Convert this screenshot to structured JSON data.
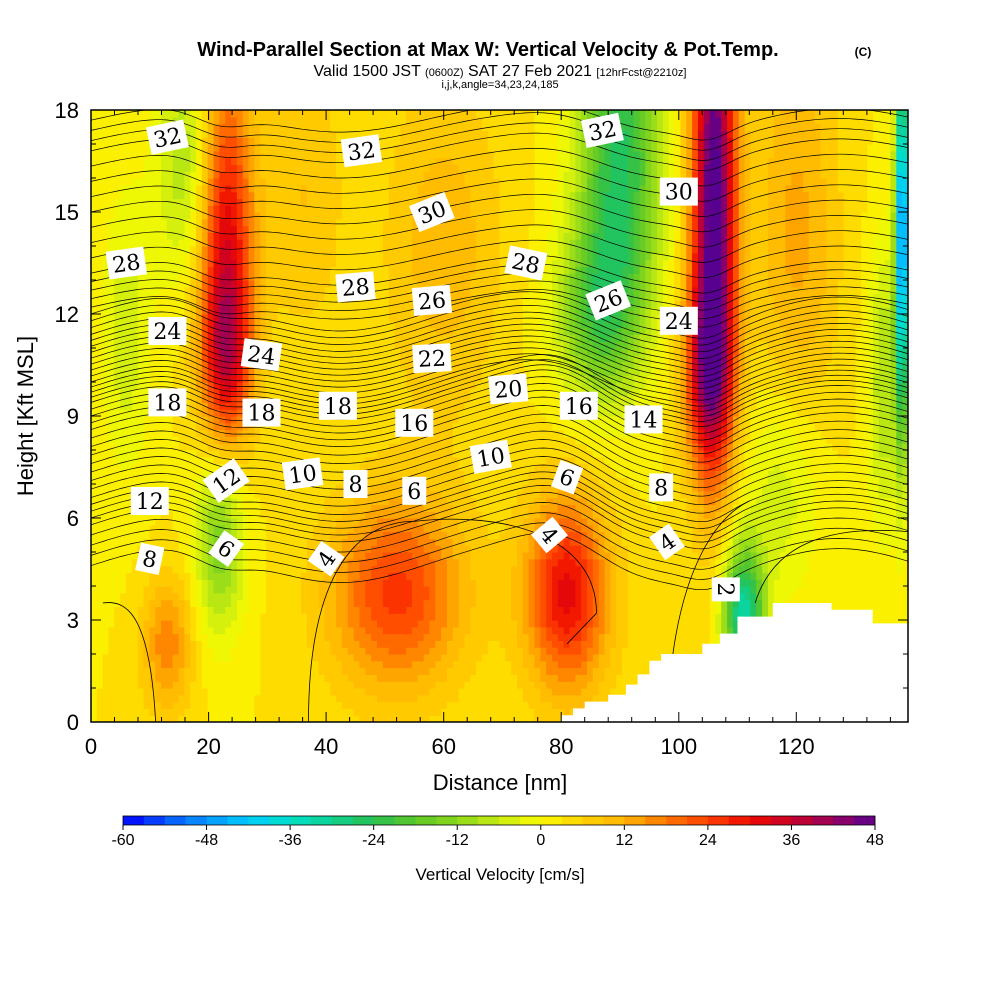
{
  "header": {
    "title": "Wind-Parallel Section at Max W: Vertical Velocity & Pot.Temp.",
    "copyright": "(C)",
    "valid_prefix": "Valid 1500 JST",
    "utc": "(0600Z)",
    "valid_date": "SAT 27 Feb 2021",
    "forecast": "[12hrFcst@2210z]",
    "section_info": "i,j,k,angle=34,23,24,185"
  },
  "chart_data": {
    "type": "heatmap",
    "xlabel": "Distance [nm]",
    "ylabel": "Height [Kft MSL]",
    "xlim": [
      0,
      139
    ],
    "ylim": [
      0,
      18
    ],
    "x_ticks": [
      "0",
      "20",
      "40",
      "60",
      "80",
      "100",
      "120"
    ],
    "x_tick_values": [
      0,
      20,
      40,
      60,
      80,
      100,
      120
    ],
    "y_ticks": [
      "0",
      "3",
      "6",
      "9",
      "12",
      "15",
      "18"
    ],
    "y_tick_values": [
      0,
      3,
      6,
      9,
      12,
      15,
      18
    ],
    "colorbar": {
      "label": "Vertical Velocity [cm/s]",
      "tick_labels": [
        "-60",
        "-48",
        "-36",
        "-24",
        "-12",
        "0",
        "12",
        "24",
        "36",
        "48"
      ],
      "tick_values": [
        -60,
        -48,
        -36,
        -24,
        -12,
        0,
        12,
        24,
        36,
        48
      ],
      "min": -60,
      "max": 48,
      "step": 3,
      "color_stops": [
        {
          "v": -60,
          "c": "#0000ff"
        },
        {
          "v": -51,
          "c": "#0a78ff"
        },
        {
          "v": -42,
          "c": "#00ccff"
        },
        {
          "v": -36,
          "c": "#00e0c8"
        },
        {
          "v": -30,
          "c": "#10d090"
        },
        {
          "v": -24,
          "c": "#28c050"
        },
        {
          "v": -18,
          "c": "#5cc828"
        },
        {
          "v": -12,
          "c": "#8cd81c"
        },
        {
          "v": -6,
          "c": "#c8ec10"
        },
        {
          "v": 0,
          "c": "#fafa00"
        },
        {
          "v": 6,
          "c": "#ffd200"
        },
        {
          "v": 12,
          "c": "#ffb400"
        },
        {
          "v": 18,
          "c": "#ff7800"
        },
        {
          "v": 24,
          "c": "#ff4000"
        },
        {
          "v": 30,
          "c": "#ee0a00"
        },
        {
          "v": 36,
          "c": "#c80028"
        },
        {
          "v": 42,
          "c": "#960060"
        },
        {
          "v": 48,
          "c": "#580090"
        }
      ]
    },
    "vertical_velocity_features": [
      {
        "x": 23,
        "y": 13.5,
        "sx": 3.2,
        "sy": 4.0,
        "w": 30
      },
      {
        "x": 23,
        "y": 10.8,
        "sx": 3.0,
        "sy": 1.6,
        "w": 14
      },
      {
        "x": 106,
        "y": 15.5,
        "sx": 2.6,
        "sy": 5.0,
        "w": 48
      },
      {
        "x": 105,
        "y": 10.3,
        "sx": 3.0,
        "sy": 2.0,
        "w": 24
      },
      {
        "x": 52,
        "y": 3.8,
        "sx": 8.0,
        "sy": 2.0,
        "w": 22
      },
      {
        "x": 81,
        "y": 3.8,
        "sx": 5.0,
        "sy": 2.0,
        "w": 28
      },
      {
        "x": 13,
        "y": 2.3,
        "sx": 3.0,
        "sy": 1.4,
        "w": 14
      },
      {
        "x": 90,
        "y": 16.5,
        "sx": 5.0,
        "sy": 3.5,
        "w": -28
      },
      {
        "x": 86,
        "y": 12.0,
        "sx": 5.0,
        "sy": 1.8,
        "w": -18
      },
      {
        "x": 22,
        "y": 5.5,
        "sx": 3.0,
        "sy": 2.0,
        "w": -20
      },
      {
        "x": 16,
        "y": 16.5,
        "sx": 3.5,
        "sy": 2.5,
        "w": -12
      },
      {
        "x": 111,
        "y": 3.2,
        "sx": 2.5,
        "sy": 1.4,
        "w": -35
      },
      {
        "x": 138,
        "y": 14.5,
        "sx": 0.8,
        "sy": 4.0,
        "w": -55
      },
      {
        "x": 135,
        "y": 10.0,
        "sx": 2.0,
        "sy": 3.0,
        "w": -12
      },
      {
        "x": 60,
        "y": 14.0,
        "sx": 7.0,
        "sy": 3.5,
        "w": 8
      },
      {
        "x": 6,
        "y": 11.5,
        "sx": 3.0,
        "sy": 3.0,
        "w": -8
      },
      {
        "x": 118,
        "y": 7.0,
        "sx": 5.0,
        "sy": 2.5,
        "w": -10
      },
      {
        "x": 36,
        "y": 15.5,
        "sx": 5.0,
        "sy": 3.0,
        "w": 6
      },
      {
        "x": 120,
        "y": 14.0,
        "sx": 5.0,
        "sy": 5.0,
        "w": 10
      }
    ],
    "terrain_profile": [
      {
        "x": 80,
        "top": 0.2
      },
      {
        "x": 82,
        "top": 0.4
      },
      {
        "x": 84,
        "top": 0.6
      },
      {
        "x": 88,
        "top": 0.8
      },
      {
        "x": 91,
        "top": 1.1
      },
      {
        "x": 93,
        "top": 1.4
      },
      {
        "x": 95,
        "top": 1.8
      },
      {
        "x": 97,
        "top": 2.0
      },
      {
        "x": 104,
        "top": 2.3
      },
      {
        "x": 107,
        "top": 2.6
      },
      {
        "x": 110,
        "top": 3.1
      },
      {
        "x": 116,
        "top": 3.5
      },
      {
        "x": 126,
        "top": 3.3
      },
      {
        "x": 133,
        "top": 2.9
      }
    ],
    "potential_temperature_contour_labels": [
      {
        "text": "32",
        "x": 13,
        "y": 17.2,
        "angle": -12
      },
      {
        "text": "32",
        "x": 46,
        "y": 16.8,
        "angle": -8
      },
      {
        "text": "32",
        "x": 87,
        "y": 17.4,
        "angle": -12
      },
      {
        "text": "30",
        "x": 58,
        "y": 15.0,
        "angle": -22
      },
      {
        "text": "30",
        "x": 100,
        "y": 15.6,
        "angle": 0
      },
      {
        "text": "28",
        "x": 6,
        "y": 13.5,
        "angle": -8
      },
      {
        "text": "28",
        "x": 45,
        "y": 12.8,
        "angle": -5
      },
      {
        "text": "28",
        "x": 74,
        "y": 13.5,
        "angle": 12
      },
      {
        "text": "26",
        "x": 58,
        "y": 12.4,
        "angle": -5
      },
      {
        "text": "26",
        "x": 88,
        "y": 12.4,
        "angle": -22
      },
      {
        "text": "24",
        "x": 13,
        "y": 11.5,
        "angle": 0
      },
      {
        "text": "24",
        "x": 29,
        "y": 10.8,
        "angle": 8
      },
      {
        "text": "24",
        "x": 100,
        "y": 11.8,
        "angle": 0
      },
      {
        "text": "22",
        "x": 58,
        "y": 10.7,
        "angle": -3
      },
      {
        "text": "20",
        "x": 71,
        "y": 9.8,
        "angle": -5
      },
      {
        "text": "18",
        "x": 13,
        "y": 9.4,
        "angle": 0
      },
      {
        "text": "18",
        "x": 29,
        "y": 9.1,
        "angle": 0
      },
      {
        "text": "18",
        "x": 42,
        "y": 9.3,
        "angle": 0
      },
      {
        "text": "16",
        "x": 55,
        "y": 8.8,
        "angle": 0
      },
      {
        "text": "16",
        "x": 83,
        "y": 9.3,
        "angle": 0
      },
      {
        "text": "14",
        "x": 94,
        "y": 8.9,
        "angle": 0
      },
      {
        "text": "12",
        "x": 10,
        "y": 6.5,
        "angle": 0
      },
      {
        "text": "12",
        "x": 23,
        "y": 7.1,
        "angle": -35
      },
      {
        "text": "10",
        "x": 36,
        "y": 7.3,
        "angle": -8
      },
      {
        "text": "10",
        "x": 68,
        "y": 7.8,
        "angle": -10
      },
      {
        "text": "8",
        "x": 10,
        "y": 4.8,
        "angle": 12
      },
      {
        "text": "8",
        "x": 45,
        "y": 7.0,
        "angle": 0
      },
      {
        "text": "8",
        "x": 97,
        "y": 6.9,
        "angle": 0
      },
      {
        "text": "6",
        "x": 23,
        "y": 5.1,
        "angle": 35
      },
      {
        "text": "6",
        "x": 55,
        "y": 6.8,
        "angle": 0
      },
      {
        "text": "6",
        "x": 81,
        "y": 7.2,
        "angle": 20
      },
      {
        "text": "4",
        "x": 40,
        "y": 4.8,
        "angle": -55
      },
      {
        "text": "4",
        "x": 78,
        "y": 5.5,
        "angle": 50
      },
      {
        "text": "4",
        "x": 98,
        "y": 5.3,
        "angle": -35
      },
      {
        "text": "2",
        "x": 108,
        "y": 3.9,
        "angle": 90
      }
    ],
    "potential_temperature_levels": [
      {
        "theta": 8,
        "base": 4.6
      },
      {
        "theta": 10,
        "base": 5.8
      },
      {
        "theta": 12,
        "base": 6.6
      },
      {
        "theta": 14,
        "base": 7.6
      },
      {
        "theta": 16,
        "base": 8.6
      },
      {
        "theta": 18,
        "base": 9.4
      },
      {
        "theta": 20,
        "base": 10.0
      },
      {
        "theta": 22,
        "base": 10.7
      },
      {
        "theta": 24,
        "base": 11.4
      },
      {
        "theta": 26,
        "base": 12.2
      },
      {
        "theta": 28,
        "base": 13.2
      },
      {
        "theta": 30,
        "base": 15.0
      },
      {
        "theta": 32,
        "base": 16.8
      }
    ]
  }
}
